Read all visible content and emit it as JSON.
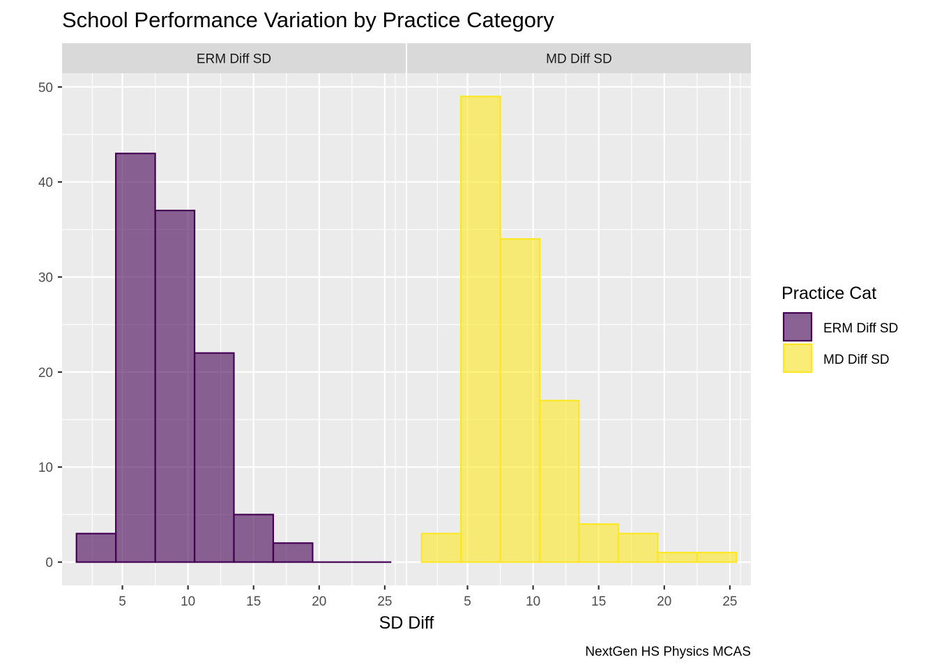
{
  "chart_data": {
    "type": "bar",
    "title": "School Performance Variation by Practice Category",
    "xlabel": "SD Diff",
    "ylabel": "",
    "caption": "NextGen HS Physics MCAS",
    "legend_title": "Practice Cat",
    "legend_position": "right",
    "grid": true,
    "bin_width": 3,
    "x_ticks": [
      5,
      10,
      15,
      20,
      25
    ],
    "y_ticks": [
      0,
      10,
      20,
      30,
      40,
      50
    ],
    "xlim": [
      0.4,
      26.6
    ],
    "ylim": [
      -2.45,
      51.45
    ],
    "panels": [
      {
        "label": "ERM Diff SD",
        "fill": "#440154",
        "bins": [
          {
            "x": 3,
            "count": 3
          },
          {
            "x": 6,
            "count": 43
          },
          {
            "x": 9,
            "count": 37
          },
          {
            "x": 12,
            "count": 22
          },
          {
            "x": 15,
            "count": 5
          },
          {
            "x": 18,
            "count": 2
          },
          {
            "x": 21,
            "count": 0
          },
          {
            "x": 24,
            "count": 0
          }
        ]
      },
      {
        "label": "MD Diff SD",
        "fill": "#FDE725",
        "bins": [
          {
            "x": 3,
            "count": 3
          },
          {
            "x": 6,
            "count": 49
          },
          {
            "x": 9,
            "count": 34
          },
          {
            "x": 12,
            "count": 17
          },
          {
            "x": 15,
            "count": 4
          },
          {
            "x": 18,
            "count": 3
          },
          {
            "x": 21,
            "count": 1
          },
          {
            "x": 24,
            "count": 1
          }
        ]
      }
    ]
  }
}
